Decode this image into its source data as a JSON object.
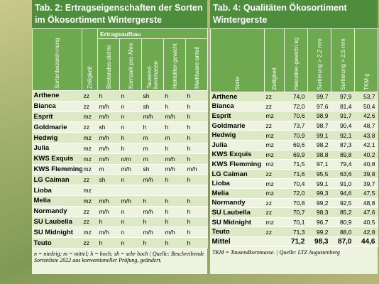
{
  "tables": [
    {
      "title": "Tab. 2: Ertragseigenschaften der Sorten im Ökosortiment Wintergerste",
      "group_header": "Ertragsaufbau",
      "headers": [
        "Sortenbezeich-nung",
        "Zeiligkeit",
        "Bestandes-dichte",
        "Kornzahl pro Ähre",
        "Tausend-kornmasse",
        "Hektoliter-gewicht",
        "Marktware-anteil"
      ],
      "rows": [
        [
          "Arthene",
          "zz",
          "h",
          "n",
          "sh",
          "h",
          "h"
        ],
        [
          "Bianca",
          "zz",
          "m/h",
          "n",
          "sh",
          "h",
          "h"
        ],
        [
          "Esprit",
          "mz",
          "m/h",
          "n",
          "m/h",
          "m/h",
          "h"
        ],
        [
          "Goldmarie",
          "zz",
          "sh",
          "n",
          "h",
          "h",
          "h"
        ],
        [
          "Hedwig",
          "mz",
          "m/h",
          "h",
          "m",
          "m",
          "h"
        ],
        [
          "Julia",
          "mz",
          "m/h",
          "h",
          "m",
          "h",
          "h"
        ],
        [
          "KWS Exquis",
          "mz",
          "m/h",
          "n/m",
          "m",
          "m/h",
          "h"
        ],
        [
          "KWS Flemming",
          "mz",
          "m",
          "m/h",
          "sh",
          "m/h",
          "m/h"
        ],
        [
          "LG Caiman",
          "zz",
          "sh",
          "n",
          "m/h",
          "h",
          "h"
        ],
        [
          "Lioba",
          "mz"
        ],
        [
          "Melia",
          "mz",
          "m/h",
          "m/h",
          "h",
          "h",
          "h"
        ],
        [
          "Normandy",
          "zz",
          "m/h",
          "n",
          "m/h",
          "h",
          "h"
        ],
        [
          "SU Laubella",
          "zz",
          "h",
          "n",
          "h",
          "h",
          "h"
        ],
        [
          "SU Midnight",
          "mz",
          "m/h",
          "n",
          "m/h",
          "m/h",
          "h"
        ],
        [
          "Teuto",
          "zz",
          "h",
          "n",
          "h",
          "h",
          "h"
        ]
      ],
      "footnote": "n = niedrig; m = mittel; h = hoch; sh = sehr hoch | Quelle: Beschreibende Sortenliste 2022 aus konventioneller Prüfung, geändert."
    },
    {
      "title": "Tab. 4: Qualitäten Ökosortiment Wintergerste",
      "headers": [
        "Sorte",
        "Zeiligkeit",
        "Hektoliter-gewicht kg",
        "Sortierung > 2,2 mm",
        "Sortierung > 2,5 mm",
        "TKM g"
      ],
      "rows": [
        [
          "Arthene",
          "zz",
          "74,0",
          "99,7",
          "97,9",
          "53,7"
        ],
        [
          "Bianca",
          "zz",
          "72,0",
          "97,6",
          "81,4",
          "50,4"
        ],
        [
          "Esprit",
          "mz",
          "70,6",
          "98,9",
          "91,7",
          "42,6"
        ],
        [
          "Goldmarie",
          "zz",
          "73,7",
          "98,7",
          "90,4",
          "48,7"
        ],
        [
          "Hedwig",
          "mz",
          "70,9",
          "99,1",
          "92,1",
          "43,8"
        ],
        [
          "Julia",
          "mz",
          "69,6",
          "98,2",
          "87,3",
          "42,1"
        ],
        [
          "KWS Exquis",
          "mz",
          "69,9",
          "98,8",
          "89,8",
          "40,2"
        ],
        [
          "KWS Flemming",
          "mz",
          "71,5",
          "97,1",
          "79,4",
          "40,8"
        ],
        [
          "LG Caiman",
          "zz",
          "71,6",
          "95,5",
          "63,6",
          "39,8"
        ],
        [
          "Lioba",
          "mz",
          "70,4",
          "99,1",
          "91,0",
          "39,7"
        ],
        [
          "Melia",
          "mz",
          "72,0",
          "99,3",
          "94,6",
          "47,5"
        ],
        [
          "Normandy",
          "zz",
          "70,8",
          "99,2",
          "92,5",
          "48,8"
        ],
        [
          "SU Laubella",
          "zz",
          "70,7",
          "98,3",
          "85,2",
          "47,6"
        ],
        [
          "SU Midnight",
          "mz",
          "70,1",
          "96,7",
          "80,9",
          "40,5"
        ],
        [
          "Teuto",
          "zz",
          "71,3",
          "99,2",
          "88,0",
          "42,8"
        ],
        [
          "Mittel",
          "",
          "71,2",
          "98,3",
          "87,0",
          "44,6"
        ]
      ],
      "footnote": "TKM = Tausendkornmasse. | Quelle: LTZ Augustenberg"
    }
  ]
}
